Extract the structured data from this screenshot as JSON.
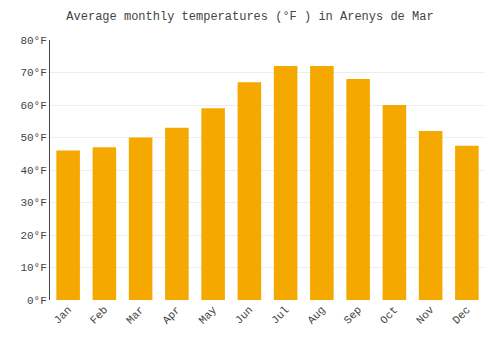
{
  "chart_data": {
    "type": "bar",
    "title": "Average monthly temperatures (°F ) in Arenys de Mar",
    "categories": [
      "Jan",
      "Feb",
      "Mar",
      "Apr",
      "May",
      "Jun",
      "Jul",
      "Aug",
      "Sep",
      "Oct",
      "Nov",
      "Dec"
    ],
    "values": [
      46,
      47,
      50,
      53,
      59,
      67,
      72,
      72,
      68,
      60,
      52,
      47.5
    ],
    "color": "#F5A800",
    "ylim": [
      0,
      80
    ],
    "yticks": [
      {
        "value": 0,
        "label": "0°F"
      },
      {
        "value": 10,
        "label": "10°F"
      },
      {
        "value": 20,
        "label": "20°F"
      },
      {
        "value": 30,
        "label": "30°F"
      },
      {
        "value": 40,
        "label": "40°F"
      },
      {
        "value": 50,
        "label": "50°F"
      },
      {
        "value": 60,
        "label": "60°F"
      },
      {
        "value": 70,
        "label": "70°F"
      },
      {
        "value": 80,
        "label": "80°F"
      }
    ],
    "grid": true
  }
}
